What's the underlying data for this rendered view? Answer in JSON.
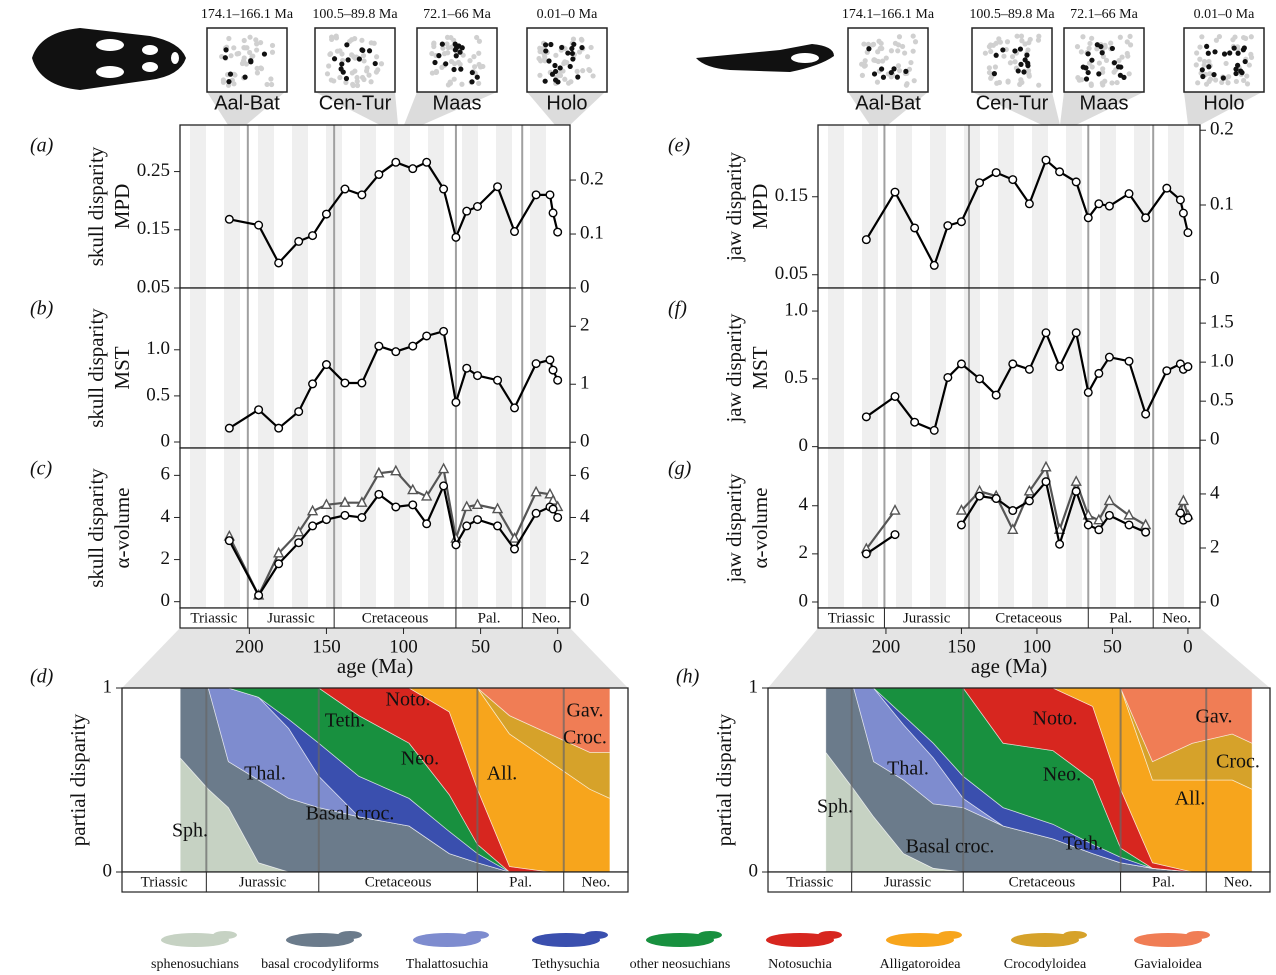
{
  "insets": {
    "skull": [
      {
        "range": "174.1–166.1 Ma",
        "label": "Aal-Bat"
      },
      {
        "range": "100.5–89.8 Ma",
        "label": "Cen-Tur"
      },
      {
        "range": "72.1–66 Ma",
        "label": "Maas"
      },
      {
        "range": "0.01–0 Ma",
        "label": "Holo"
      }
    ],
    "jaw": [
      {
        "range": "174.1–166.1 Ma",
        "label": "Aal-Bat"
      },
      {
        "range": "100.5–89.8 Ma",
        "label": "Cen-Tur"
      },
      {
        "range": "72.1–66 Ma",
        "label": "Maas"
      },
      {
        "range": "0.01–0 Ma",
        "label": "Holo"
      }
    ]
  },
  "chart_data": [
    {
      "type": "line",
      "label": "(a)",
      "ylabel": [
        "skull disparity",
        "MPD"
      ],
      "x": [
        213,
        194,
        181,
        168,
        159,
        150,
        138,
        127,
        116,
        105,
        94,
        85,
        74,
        66,
        59,
        52,
        39,
        28,
        14,
        5,
        3,
        0
      ],
      "xlim": [
        245,
        -8
      ],
      "ylim": [
        0.05,
        0.33
      ],
      "yticks": [
        0.05,
        0.15,
        0.25
      ],
      "y2lim": [
        0,
        0.302
      ],
      "y2ticks": [
        0,
        0.1,
        0.2
      ],
      "period_bounds": [
        201,
        145,
        66,
        23
      ],
      "series": [
        {
          "color": "#000000",
          "marker": "circle",
          "values": [
            0.168,
            0.158,
            0.093,
            0.13,
            0.14,
            0.177,
            0.22,
            0.21,
            0.245,
            0.266,
            0.255,
            0.266,
            0.22,
            0.137,
            0.182,
            0.19,
            0.224,
            0.147,
            0.21,
            0.21,
            0.179,
            0.146
          ]
        }
      ]
    },
    {
      "type": "line",
      "label": "(b)",
      "ylabel": [
        "skull disparity",
        "MST"
      ],
      "x": [
        213,
        194,
        181,
        168,
        159,
        150,
        138,
        127,
        116,
        105,
        94,
        85,
        74,
        66,
        59,
        52,
        39,
        28,
        14,
        5,
        3,
        0
      ],
      "xlim": [
        245,
        -8
      ],
      "ylim": [
        -0.065,
        1.67
      ],
      "yticks": [
        0,
        0.5,
        {
          "value": 1,
          "label": "1.0"
        }
      ],
      "y2lim": [
        -0.1,
        2.66
      ],
      "y2ticks": [
        0,
        1,
        2
      ],
      "period_bounds": [
        201,
        145,
        66,
        23
      ],
      "series": [
        {
          "color": "#000000",
          "marker": "circle",
          "values": [
            0.15,
            0.35,
            0.15,
            0.33,
            0.63,
            0.84,
            0.64,
            0.64,
            1.04,
            0.98,
            1.04,
            1.15,
            1.2,
            0.43,
            0.8,
            0.72,
            0.67,
            0.37,
            0.85,
            0.89,
            0.78,
            0.67
          ]
        }
      ]
    },
    {
      "type": "line",
      "label": "(c)",
      "ylabel": [
        "skull disparity",
        "α-volume"
      ],
      "xlabel": "age (Ma)",
      "x": [
        213,
        194,
        181,
        168,
        159,
        150,
        138,
        127,
        116,
        105,
        94,
        85,
        74,
        66,
        59,
        52,
        39,
        28,
        14,
        5,
        3,
        0
      ],
      "xlim": [
        245,
        -8
      ],
      "xticks": [
        200,
        150,
        100,
        50,
        0
      ],
      "ylim": [
        -0.3,
        7.3
      ],
      "yticks": [
        0,
        2,
        4,
        6
      ],
      "y2lim": [
        -0.3,
        7.3
      ],
      "y2ticks": [
        0,
        2,
        4,
        6
      ],
      "period_bounds": [
        201,
        145,
        66,
        23
      ],
      "periods": [
        "Triassic",
        "Jurassic",
        "Cretaceous",
        "Pal.",
        "Neo."
      ],
      "series": [
        {
          "color": "#555555",
          "marker": "triangle",
          "values": [
            3.1,
            0.3,
            2.3,
            3.3,
            4.3,
            4.6,
            4.7,
            4.7,
            6.1,
            6.2,
            5.3,
            5.0,
            6.3,
            3.0,
            4.5,
            4.6,
            4.4,
            3.0,
            5.2,
            5.1,
            4.8,
            4.5
          ]
        },
        {
          "color": "#000000",
          "marker": "circle",
          "values": [
            2.9,
            0.3,
            1.8,
            2.8,
            3.6,
            3.9,
            4.1,
            4.0,
            5.1,
            4.5,
            4.6,
            3.7,
            5.5,
            2.7,
            3.6,
            3.9,
            3.6,
            2.5,
            4.2,
            4.5,
            4.4,
            4.0
          ]
        }
      ]
    },
    {
      "type": "stacked_area",
      "label": "(d)",
      "ylabel": "partial disparity",
      "x": [
        214,
        200,
        190,
        175,
        160,
        145,
        125,
        100,
        80,
        66,
        50,
        30,
        10,
        0
      ],
      "xlim": [
        243,
        -9
      ],
      "ylim": [
        0,
        1
      ],
      "yticks": [
        0,
        1
      ],
      "period_bounds": [
        201,
        145,
        66,
        23
      ],
      "periods": [
        "Triassic",
        "Jurassic",
        "Cretaceous",
        "Pal.",
        "Neo."
      ],
      "series": [
        {
          "name": "sphenosuchians",
          "label": "Sph.",
          "color": "#c6d2c3",
          "values": [
            0.62,
            0.45,
            0.35,
            0.05,
            0,
            0,
            0,
            0,
            0,
            0,
            0,
            0,
            0,
            0
          ]
        },
        {
          "name": "basal crocodyliforms",
          "label": "Basal croc.",
          "color": "#6b7b8b",
          "values": [
            0.38,
            0.55,
            0.25,
            0.45,
            0.4,
            0.35,
            0.3,
            0.25,
            0.1,
            0.05,
            0,
            0,
            0,
            0
          ]
        },
        {
          "name": "Thalattosuchia",
          "label": "Thal.",
          "color": "#7e8ccf",
          "values": [
            0,
            0,
            0.4,
            0.45,
            0.38,
            0.17,
            0,
            0,
            0,
            0,
            0,
            0,
            0,
            0
          ]
        },
        {
          "name": "Tethysuchia",
          "label": "Teth.",
          "color": "#3a4fae",
          "values": [
            0,
            0,
            0,
            0,
            0.05,
            0.18,
            0.22,
            0.15,
            0.12,
            0.05,
            0,
            0,
            0,
            0
          ]
        },
        {
          "name": "other neosuchians",
          "label": "Neo.",
          "color": "#18903f",
          "values": [
            0,
            0,
            0,
            0.05,
            0.17,
            0.3,
            0.33,
            0.3,
            0.2,
            0.05,
            0,
            0,
            0,
            0
          ]
        },
        {
          "name": "Notosuchia",
          "label": "Noto.",
          "color": "#d7261f",
          "values": [
            0,
            0,
            0,
            0,
            0,
            0,
            0.15,
            0.3,
            0.45,
            0.3,
            0.03,
            0,
            0,
            0
          ]
        },
        {
          "name": "Alligatoroidea",
          "label": "All.",
          "color": "#f7a51c",
          "values": [
            0,
            0,
            0,
            0,
            0,
            0,
            0,
            0,
            0.13,
            0.55,
            0.72,
            0.6,
            0.45,
            0.4
          ]
        },
        {
          "name": "Crocodyloidea",
          "label": "Croc.",
          "color": "#d6a22a",
          "values": [
            0,
            0,
            0,
            0,
            0,
            0,
            0,
            0,
            0,
            0,
            0.1,
            0.15,
            0.2,
            0.25
          ]
        },
        {
          "name": "Gavialoidea",
          "label": "Gav.",
          "color": "#f07d55",
          "values": [
            0,
            0,
            0,
            0,
            0,
            0,
            0,
            0,
            0,
            0,
            0.15,
            0.25,
            0.35,
            0.35
          ]
        }
      ]
    },
    {
      "type": "line",
      "label": "(e)",
      "ylabel": [
        "jaw disparity",
        "MPD"
      ],
      "x": [
        213,
        194,
        181,
        168,
        159,
        150,
        138,
        127,
        116,
        105,
        94,
        85,
        74,
        66,
        59,
        52,
        39,
        28,
        14,
        5,
        3,
        0
      ],
      "xlim": [
        245,
        -8
      ],
      "ylim": [
        0.033,
        0.242
      ],
      "yticks": [
        0.05,
        0.15
      ],
      "y2lim": [
        -0.011,
        0.207
      ],
      "y2ticks": [
        0,
        0.1,
        0.2
      ],
      "period_bounds": [
        201,
        145,
        66,
        23
      ],
      "series": [
        {
          "color": "#000000",
          "marker": "circle",
          "values": [
            0.095,
            0.156,
            0.11,
            0.062,
            0.113,
            0.118,
            0.168,
            0.181,
            0.172,
            0.141,
            0.197,
            0.182,
            0.169,
            0.123,
            0.141,
            0.138,
            0.154,
            0.123,
            0.161,
            0.146,
            0.129,
            0.104
          ]
        }
      ]
    },
    {
      "type": "line",
      "label": "(f)",
      "ylabel": [
        "jaw disparity",
        "MST"
      ],
      "x": [
        213,
        194,
        181,
        168,
        159,
        150,
        138,
        127,
        116,
        105,
        94,
        85,
        74,
        66,
        59,
        52,
        39,
        28,
        14,
        5,
        3,
        0
      ],
      "xlim": [
        245,
        -8
      ],
      "ylim": [
        -0.01,
        1.17
      ],
      "yticks": [
        0,
        0.5,
        {
          "value": 1,
          "label": "1.0"
        }
      ],
      "y2lim": [
        -0.1,
        1.95
      ],
      "y2ticks": [
        0,
        0.5,
        {
          "value": 1,
          "label": "1.0"
        },
        1.5
      ],
      "period_bounds": [
        201,
        145,
        66,
        23
      ],
      "series": [
        {
          "color": "#000000",
          "marker": "circle",
          "values": [
            0.22,
            0.37,
            0.18,
            0.12,
            0.51,
            0.61,
            0.5,
            0.38,
            0.61,
            0.57,
            0.84,
            0.59,
            0.84,
            0.4,
            0.54,
            0.66,
            0.63,
            0.24,
            0.56,
            0.61,
            0.57,
            0.59
          ]
        }
      ]
    },
    {
      "type": "line",
      "label": "(g)",
      "ylabel": [
        "jaw disparity",
        "α-volume"
      ],
      "xlabel": "age (Ma)",
      "x": [
        213,
        194,
        181,
        168,
        159,
        150,
        138,
        127,
        116,
        105,
        94,
        85,
        74,
        66,
        59,
        52,
        39,
        28,
        14,
        5,
        3,
        0
      ],
      "xlim": [
        245,
        -8
      ],
      "xticks": [
        200,
        150,
        100,
        50,
        0
      ],
      "ylim": [
        -0.25,
        6.4
      ],
      "yticks": [
        0,
        2,
        4
      ],
      "y2lim": [
        -0.22,
        5.7
      ],
      "y2ticks": [
        0,
        2,
        4
      ],
      "period_bounds": [
        201,
        145,
        66,
        23
      ],
      "periods": [
        "Triassic",
        "Jurassic",
        "Cretaceous",
        "Pal.",
        "Neo."
      ],
      "series": [
        {
          "color": "#555555",
          "marker": "triangle",
          "values": [
            2.2,
            3.8,
            null,
            null,
            null,
            3.8,
            4.6,
            4.4,
            3.0,
            4.6,
            5.6,
            3.0,
            5.0,
            3.6,
            3.4,
            4.2,
            3.6,
            3.2,
            null,
            3.8,
            4.2,
            3.6
          ]
        },
        {
          "color": "#000000",
          "marker": "circle",
          "values": [
            2.0,
            2.8,
            null,
            null,
            null,
            3.2,
            4.4,
            4.3,
            3.8,
            4.2,
            5.0,
            2.4,
            4.6,
            3.2,
            3.0,
            3.6,
            3.2,
            2.9,
            null,
            3.7,
            3.4,
            3.5
          ]
        }
      ]
    },
    {
      "type": "stacked_area",
      "label": "(h)",
      "ylabel": "partial disparity",
      "x": [
        214,
        200,
        190,
        175,
        160,
        145,
        125,
        100,
        80,
        66,
        50,
        30,
        10,
        0
      ],
      "xlim": [
        243,
        -9
      ],
      "ylim": [
        0,
        1
      ],
      "yticks": [
        0,
        1
      ],
      "period_bounds": [
        201,
        145,
        66,
        23
      ],
      "periods": [
        "Triassic",
        "Jurassic",
        "Cretaceous",
        "Pal.",
        "Neo."
      ],
      "series": [
        {
          "label": "Sph.",
          "color": "#c6d2c3",
          "values": [
            0.65,
            0.45,
            0.3,
            0.1,
            0.02,
            0,
            0,
            0,
            0,
            0,
            0,
            0,
            0,
            0
          ]
        },
        {
          "label": "Basal croc.",
          "color": "#6b7b8b",
          "values": [
            0.35,
            0.55,
            0.3,
            0.4,
            0.35,
            0.35,
            0.25,
            0.18,
            0.1,
            0.05,
            0.02,
            0,
            0,
            0
          ]
        },
        {
          "label": "Thal.",
          "color": "#7e8ccf",
          "values": [
            0,
            0,
            0.4,
            0.3,
            0.25,
            0.05,
            0,
            0,
            0,
            0,
            0,
            0,
            0,
            0
          ]
        },
        {
          "label": "Teth.",
          "color": "#3a4fae",
          "values": [
            0,
            0,
            0,
            0.05,
            0.08,
            0.12,
            0.1,
            0.08,
            0.05,
            0.03,
            0,
            0,
            0,
            0
          ]
        },
        {
          "label": "Neo.",
          "color": "#18903f",
          "values": [
            0,
            0,
            0,
            0.15,
            0.3,
            0.48,
            0.35,
            0.4,
            0.35,
            0.05,
            0,
            0,
            0,
            0
          ]
        },
        {
          "label": "Noto.",
          "color": "#d7261f",
          "values": [
            0,
            0,
            0,
            0,
            0,
            0,
            0.3,
            0.34,
            0.4,
            0.32,
            0.03,
            0,
            0,
            0
          ]
        },
        {
          "label": "All.",
          "color": "#f7a51c",
          "values": [
            0,
            0,
            0,
            0,
            0,
            0,
            0,
            0,
            0.1,
            0.55,
            0.45,
            0.5,
            0.5,
            0.45
          ]
        },
        {
          "label": "Croc.",
          "color": "#d6a22a",
          "values": [
            0,
            0,
            0,
            0,
            0,
            0,
            0,
            0,
            0,
            0,
            0.1,
            0.2,
            0.25,
            0.25
          ]
        },
        {
          "label": "Gav.",
          "color": "#f07d55",
          "values": [
            0,
            0,
            0,
            0,
            0,
            0,
            0,
            0,
            0,
            0,
            0.4,
            0.3,
            0.25,
            0.3
          ]
        }
      ]
    }
  ]
}
